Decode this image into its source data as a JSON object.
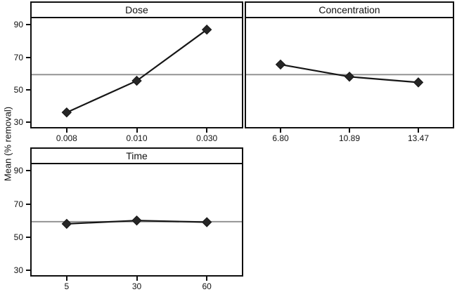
{
  "figure": {
    "ylabel": "Mean (% removal)",
    "background": "#ffffff",
    "colors": {
      "border": "#0f0f0f",
      "series_line": "#161616",
      "marker": "#262626",
      "reference_line": "#8d8d8d",
      "text": "#111111"
    }
  },
  "chart_data": [
    {
      "type": "line",
      "panel": "Dose",
      "categories": [
        "0.008",
        "0.010",
        "0.030"
      ],
      "values": [
        36,
        55.5,
        87
      ],
      "yticks": [
        90,
        70,
        50,
        30
      ],
      "ylim": [
        27,
        94
      ],
      "reference_line": 59.3,
      "marker": "diamond",
      "show_y_ticks": true,
      "grid": false,
      "legend": "none"
    },
    {
      "type": "line",
      "panel": "Concentration",
      "categories": [
        "6.80",
        "10.89",
        "13.47"
      ],
      "values": [
        65.5,
        58,
        54.5
      ],
      "yticks": [
        90,
        70,
        50,
        30
      ],
      "ylim": [
        27,
        94
      ],
      "reference_line": 59.3,
      "marker": "diamond",
      "show_y_ticks": false,
      "grid": false,
      "legend": "none"
    },
    {
      "type": "line",
      "panel": "Time",
      "categories": [
        "5",
        "30",
        "60"
      ],
      "values": [
        58,
        60,
        59
      ],
      "yticks": [
        90,
        70,
        50,
        30
      ],
      "ylim": [
        27,
        94
      ],
      "reference_line": 59.3,
      "marker": "diamond",
      "show_y_ticks": true,
      "grid": false,
      "legend": "none"
    }
  ]
}
